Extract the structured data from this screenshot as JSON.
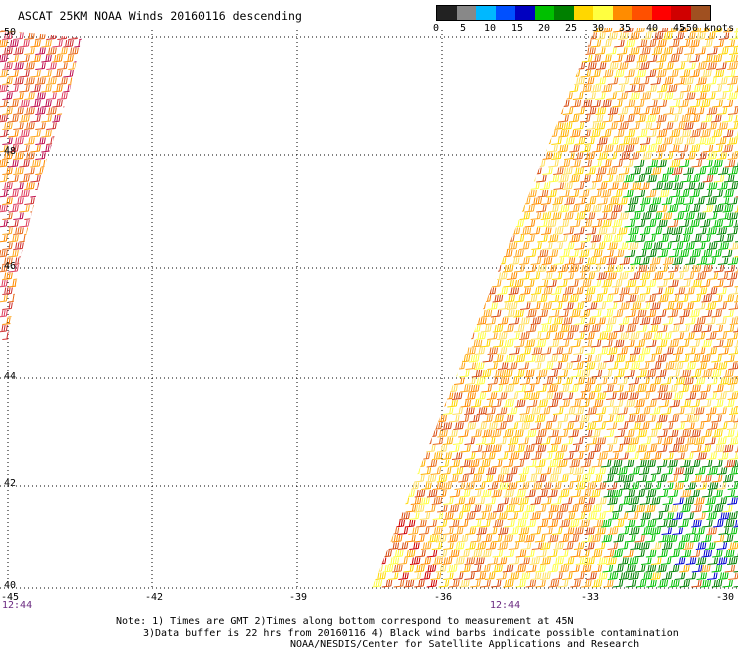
{
  "title": "ASCAT 25KM NOAA Winds 20160116 descending",
  "legend": {
    "colors": [
      "#222222",
      "#888888",
      "#00b8ff",
      "#0050ff",
      "#0000c0",
      "#00c000",
      "#008000",
      "#ffd700",
      "#ffff40",
      "#ff8c00",
      "#ff5000",
      "#ff0000",
      "#d00000",
      "#a05020",
      "#ff50c0",
      "#e000e0",
      "#8000a0",
      "#500080"
    ],
    "labels": [
      "0",
      "5",
      "10",
      "15",
      "20",
      "25",
      "30",
      "35",
      "40",
      "45",
      ">50 knots"
    ]
  },
  "axes": {
    "lat_labels": [
      "50",
      "48",
      "46",
      "44",
      "42",
      "40"
    ],
    "lon_labels": [
      "-45",
      "-42",
      "-39",
      "-36",
      "-33",
      "-30"
    ]
  },
  "times": [
    "12:44",
    "12:44"
  ],
  "notes": [
    "Note: 1) Times are GMT 2)Times along bottom correspond to measurement at 45N",
    "3)Data buffer is 22 hrs from 20160116 4) Black wind barbs indicate possible contamination",
    "NOAA/NESDIS/Center for Satellite Applications and Research"
  ],
  "swaths": {
    "west": {
      "lat_range": [
        45.4,
        50
      ],
      "lon_range": [
        -45,
        -43.5
      ]
    },
    "east": {
      "lat_range": [
        40,
        50
      ],
      "lon_range": [
        -37.3,
        -30
      ]
    }
  }
}
